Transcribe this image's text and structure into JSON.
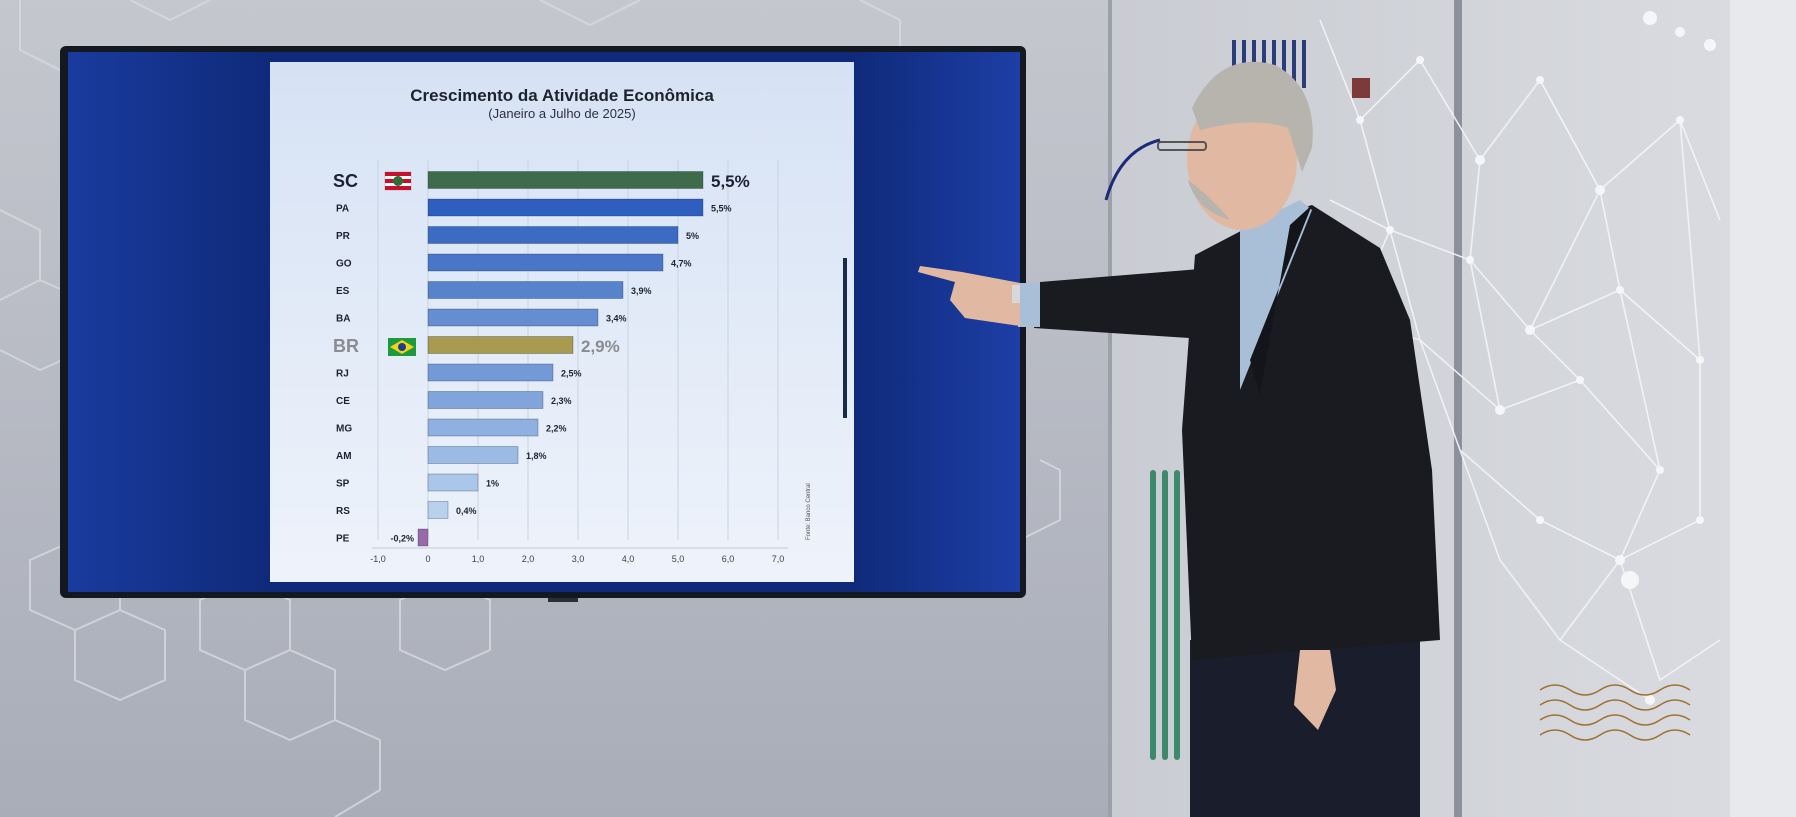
{
  "scene": {
    "description_colors": {
      "wall": "#b9bcc6",
      "screen_bezel": "#141820",
      "screen_side": "#1d3ea6",
      "jacket": "#1a1b20",
      "shirt": "#a9bfd8",
      "skin": "#e1b9a3",
      "hair": "#b7b4ae"
    }
  },
  "chart_data": {
    "type": "bar",
    "orientation": "horizontal",
    "title": "Crescimento da Atividade Econômica",
    "subtitle": "(Janeiro a Julho de 2025)",
    "source": "Fonte: Banco Central",
    "categories": [
      "SC",
      "PA",
      "PR",
      "GO",
      "ES",
      "BA",
      "BR",
      "RJ",
      "CE",
      "MG",
      "AM",
      "SP",
      "RS",
      "PE"
    ],
    "values": [
      5.5,
      5.5,
      5.0,
      4.7,
      3.9,
      3.4,
      2.9,
      2.5,
      2.3,
      2.2,
      1.8,
      1.0,
      0.4,
      -0.2
    ],
    "value_labels": [
      "5,5%",
      "5,5%",
      "5%",
      "4,7%",
      "3,9%",
      "3,4%",
      "2,9%",
      "2,5%",
      "2,3%",
      "2,2%",
      "1,8%",
      "1%",
      "0,4%",
      "-0,2%"
    ],
    "highlight": {
      "SC": "green bar with state flag",
      "BR": "gold bar with Brazil flag"
    },
    "xlim": [
      -1.0,
      7.0
    ],
    "x_ticks": [
      "-1,0",
      "0",
      "1,0",
      "2,0",
      "3,0",
      "4,0",
      "5,0",
      "6,0",
      "7,0"
    ],
    "colors": {
      "SC": "#3e6b4a",
      "BR": "#a89a4e",
      "PE": "#9a6aa8",
      "gradient_start": "#2e5fbe",
      "gradient_end": "#b8d2ee"
    },
    "grid": true,
    "legend": "none"
  }
}
